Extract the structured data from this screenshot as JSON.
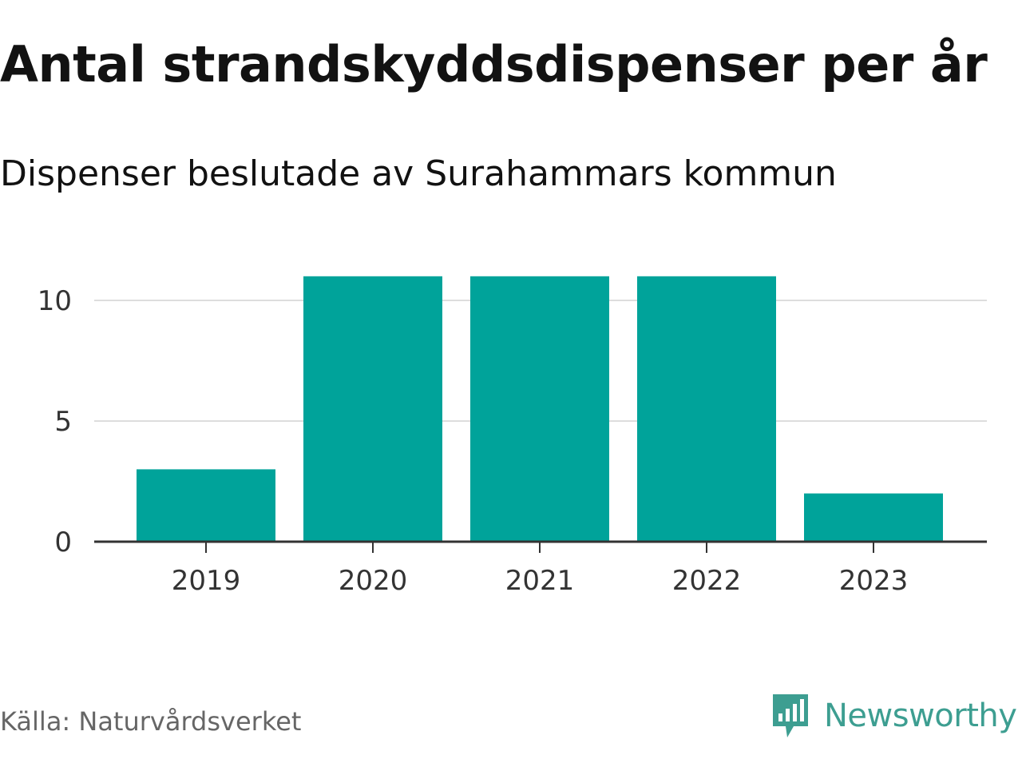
{
  "header": {
    "title": "Antal strandskyddsdispenser per år",
    "subtitle": "Dispenser beslutade av Surahammars kommun"
  },
  "chart_data": {
    "type": "bar",
    "title": "Antal strandskyddsdispenser per år",
    "subtitle": "Dispenser beslutade av Surahammars kommun",
    "categories": [
      "2019",
      "2020",
      "2021",
      "2022",
      "2023"
    ],
    "values": [
      3,
      11,
      11,
      11,
      2
    ],
    "xlabel": "",
    "ylabel": "",
    "ylim": [
      0,
      11
    ],
    "yticks": [
      0,
      5,
      10
    ],
    "grid": true,
    "legend": "none",
    "bar_color": "#00a39a"
  },
  "footer": {
    "source": "Källa: Naturvårdsverket",
    "brand": "Newsworthy",
    "brand_icon": "newsworthy-logo-icon",
    "brand_color": "#3d9e91"
  }
}
